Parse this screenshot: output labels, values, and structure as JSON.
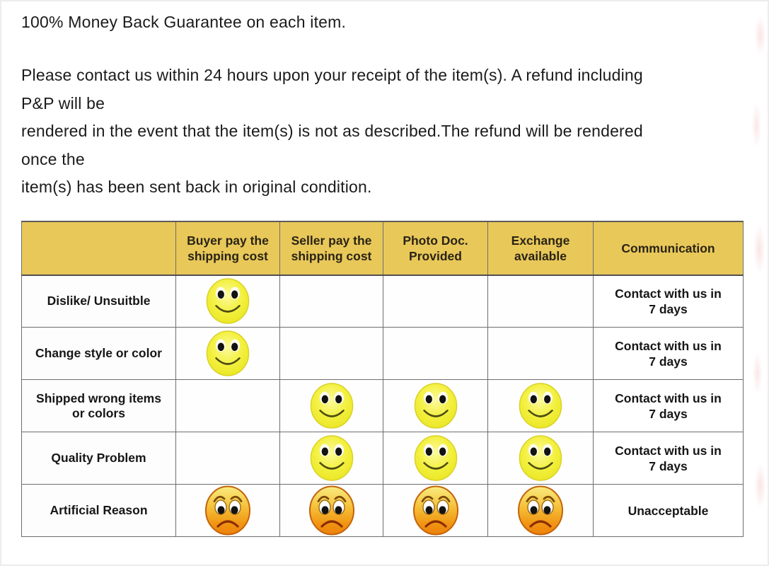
{
  "page": {
    "title_line": "100% Money Back Guarantee on each item.",
    "paragraph_lines": [
      "Please contact us within 24 hours upon your receipt of the item(s). A refund including",
      "P&P will be",
      "rendered in the event that the item(s) is not as described.The refund will be rendered",
      "once the",
      "item(s) has been sent back in original condition."
    ]
  },
  "policy_table": {
    "columns": [
      "",
      "Buyer pay the shipping cost",
      "Seller pay the shipping cost",
      "Photo Doc. Provided",
      "Exchange available",
      "Communication"
    ],
    "rows": [
      {
        "label": "Dislike/ Unsuitble",
        "buyer_pay": "happy",
        "seller_pay": "",
        "photo_doc": "",
        "exchange": "",
        "communication": "Contact with us in 7 days"
      },
      {
        "label": "Change style or color",
        "buyer_pay": "happy",
        "seller_pay": "",
        "photo_doc": "",
        "exchange": "",
        "communication": "Contact with us in 7 days"
      },
      {
        "label": "Shipped wrong items or colors",
        "buyer_pay": "",
        "seller_pay": "happy",
        "photo_doc": "happy",
        "exchange": "happy",
        "communication": "Contact with us in 7 days"
      },
      {
        "label": "Quality Problem",
        "buyer_pay": "",
        "seller_pay": "happy",
        "photo_doc": "happy",
        "exchange": "happy",
        "communication": "Contact with us in 7 days"
      },
      {
        "label": "Artificial Reason",
        "buyer_pay": "sad",
        "seller_pay": "sad",
        "photo_doc": "sad",
        "exchange": "sad",
        "communication": "Unacceptable"
      }
    ],
    "icons": {
      "happy": "happy-face-icon",
      "sad": "sad-face-icon"
    },
    "colors": {
      "header_bg": "#e9c85a",
      "happy_face_yellow": "#f2ee38",
      "sad_face_orange": "#f0900f",
      "table_border": "#6e6e6e",
      "text": "#1b1b1b"
    }
  }
}
